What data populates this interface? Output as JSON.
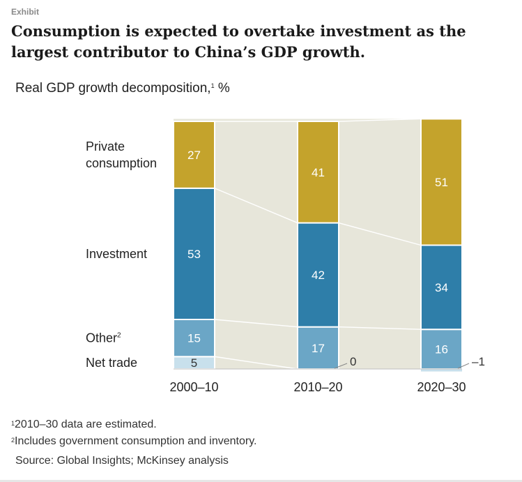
{
  "header": {
    "exhibit_label": "Exhibit",
    "title_line1": "Consumption is expected to overtake investment as the",
    "title_line2": "largest contributor to China’s GDP growth."
  },
  "subtitle": {
    "text": "Real GDP growth decomposition,",
    "sup": "1",
    "unit": " %"
  },
  "chart_data": {
    "type": "bar",
    "stacked": true,
    "title": "Real GDP growth decomposition, %",
    "categories": [
      "2000–10",
      "2010–20",
      "2020–30"
    ],
    "series": [
      {
        "name": "Net trade",
        "label": "Net trade",
        "label_sup": "",
        "values": [
          5,
          0,
          -1
        ],
        "value_labels": [
          "5",
          "0",
          "–1"
        ]
      },
      {
        "name": "Other",
        "label": "Other",
        "label_sup": "2",
        "values": [
          15,
          17,
          16
        ],
        "value_labels": [
          "15",
          "17",
          "16"
        ]
      },
      {
        "name": "Investment",
        "label": "Investment",
        "label_sup": "",
        "values": [
          53,
          42,
          34
        ],
        "value_labels": [
          "53",
          "42",
          "34"
        ]
      },
      {
        "name": "Private consumption",
        "label": "Private consumption",
        "label_sup": "",
        "values": [
          27,
          41,
          51
        ],
        "value_labels": [
          "27",
          "41",
          "51"
        ]
      }
    ],
    "ylim": [
      0,
      100
    ],
    "colors": {
      "Private consumption": "#c4a32c",
      "Investment": "#2e7ea9",
      "Other": "#6ba6c6",
      "Net trade": "#c8e0ec",
      "band": "#e7e6da",
      "connector": "#ffffff"
    }
  },
  "footnotes": {
    "fn1_mark": "1",
    "fn1_text": "2010–30 data are estimated.",
    "fn2_mark": "2",
    "fn2_text": "Includes government consumption and inventory."
  },
  "source": "Source: Global Insights; McKinsey analysis"
}
